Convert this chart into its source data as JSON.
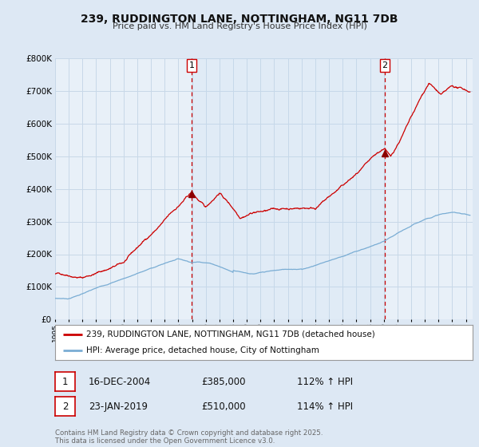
{
  "title_line1": "239, RUDDINGTON LANE, NOTTINGHAM, NG11 7DB",
  "title_line2": "Price paid vs. HM Land Registry's House Price Index (HPI)",
  "bg_color": "#dde8f4",
  "plot_bg_color": "#e8f0f8",
  "red_color": "#cc0000",
  "blue_color": "#7aadd4",
  "marker_color": "#8b0000",
  "vline_color": "#cc0000",
  "grid_color": "#c8d8e8",
  "legend_label_red": "239, RUDDINGTON LANE, NOTTINGHAM, NG11 7DB (detached house)",
  "legend_label_blue": "HPI: Average price, detached house, City of Nottingham",
  "annotation1_label": "1",
  "annotation1_date": "16-DEC-2004",
  "annotation1_price": "£385,000",
  "annotation1_hpi": "112% ↑ HPI",
  "annotation1_year": 2004.96,
  "annotation1_value": 385000,
  "annotation2_label": "2",
  "annotation2_date": "23-JAN-2019",
  "annotation2_price": "£510,000",
  "annotation2_hpi": "114% ↑ HPI",
  "annotation2_year": 2019.07,
  "annotation2_value": 510000,
  "footer": "Contains HM Land Registry data © Crown copyright and database right 2025.\nThis data is licensed under the Open Government Licence v3.0.",
  "ylim": [
    0,
    800000
  ],
  "xlim_start": 1995,
  "xlim_end": 2025.5
}
